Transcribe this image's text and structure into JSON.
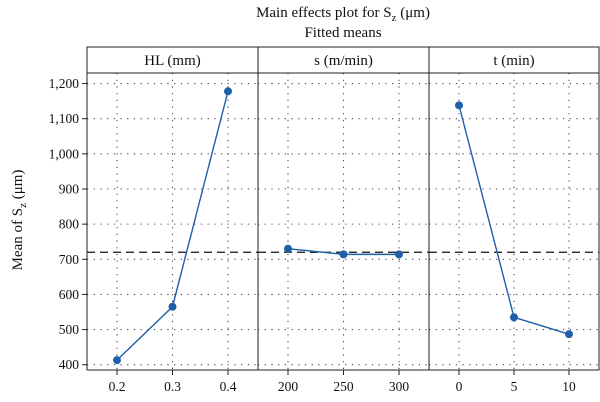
{
  "chart_data": {
    "type": "line",
    "title": "Main effects plot for S",
    "title_subscript": "z",
    "title_unit": "(μm)",
    "subtitle": "Fitted means",
    "ylabel": "Mean of S",
    "ylabel_subscript": "z",
    "ylabel_unit": "(μm)",
    "ylim": [
      385,
      1230
    ],
    "yticks": [
      400,
      500,
      600,
      700,
      800,
      900,
      1000,
      1100,
      1200
    ],
    "ytick_labels": [
      "400",
      "500",
      "600",
      "700",
      "800",
      "900",
      "1,000",
      "1,100",
      "1,200"
    ],
    "reference_line": 720,
    "grid": true,
    "panels": [
      {
        "header": "HL (mm)",
        "categories": [
          "0.2",
          "0.3",
          "0.4"
        ],
        "values": [
          413,
          565,
          1178
        ]
      },
      {
        "header": "s (m/min)",
        "categories": [
          "200",
          "250",
          "300"
        ],
        "values": [
          730,
          714,
          714
        ]
      },
      {
        "header": "t (min)",
        "categories": [
          "0",
          "5",
          "10"
        ],
        "values": [
          1138,
          535,
          487
        ]
      }
    ],
    "colors": {
      "series": "#1f5fa8",
      "frame": "#222222"
    }
  }
}
